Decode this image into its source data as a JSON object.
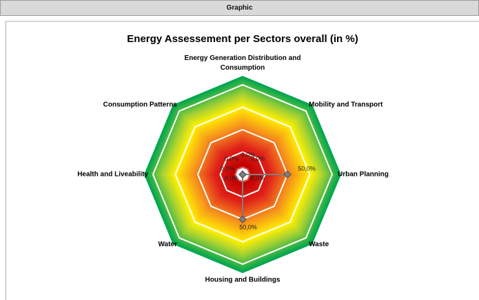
{
  "header": {
    "title": "Graphic"
  },
  "chart_data": {
    "type": "radar",
    "title": "Energy Assessement per Sectors overall (in %)",
    "categories": [
      "Energy Generation Distribution and Consumption",
      "Mobility and Transport",
      "Urban Planning",
      "Waste",
      "Housing and Buildings",
      "Water",
      "Health and Liveability",
      "Consumption Patterns"
    ],
    "series": [
      {
        "name": "Overall",
        "color": "#7f7f7f",
        "values": [
          0,
          0,
          50,
          0,
          50,
          0,
          0,
          0
        ],
        "value_labels": [
          "0,0%",
          "0,0%",
          "50,0%",
          "0,0%",
          "50,0%",
          "0,0%",
          "0,0%",
          "0,0%"
        ]
      }
    ],
    "ylim": [
      0,
      110
    ],
    "yticks": [
      0,
      25,
      50,
      75,
      100
    ],
    "grid": true,
    "legend": false
  }
}
